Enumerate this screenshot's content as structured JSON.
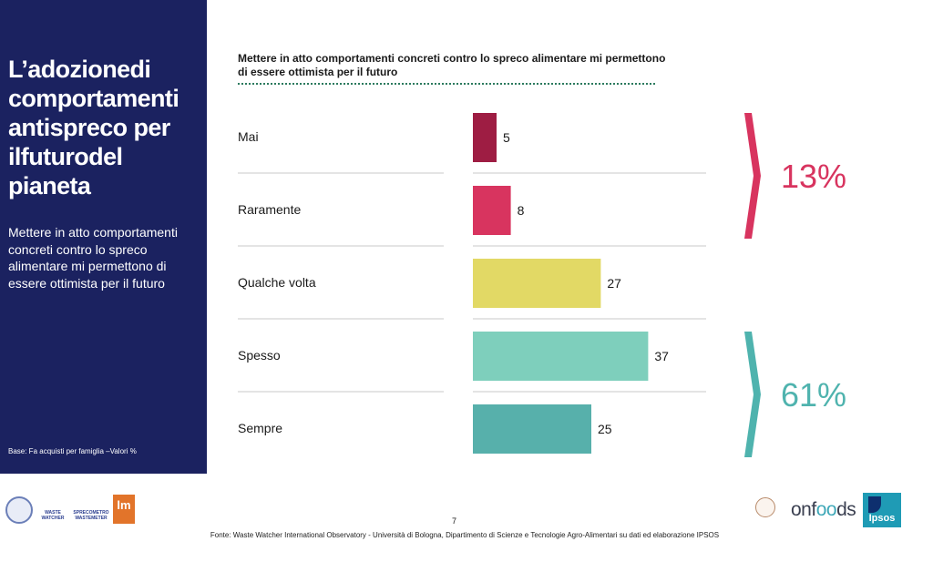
{
  "left_panel": {
    "title": "L’adozionedi comportamenti antispreco per ilfuturodel pianeta",
    "subtitle": "Mettere in atto comportamenti concreti contro lo spreco alimentare mi permettono di essere ottimista per il futuro",
    "base": "Base: Fa acquisti per famiglia –Valori %"
  },
  "colors": {
    "panel": "#1b2260",
    "mai": "#9e1d43",
    "raramente": "#d8345f",
    "qualche_volta": "#e2d965",
    "spesso": "#7ecfbc",
    "sempre": "#57b0ab",
    "group_negative": "#d8345f",
    "group_positive": "#4fb3ae"
  },
  "chart_data": {
    "type": "bar",
    "orientation": "horizontal",
    "title": "Mettere in atto comportamenti concreti contro lo spreco alimentare mi permettono di essere ottimista per il futuro",
    "categories": [
      "Mai",
      "Raramente",
      "Qualche volta",
      "Spesso",
      "Sempre"
    ],
    "values": [
      5,
      8,
      27,
      37,
      25
    ],
    "data_labels": [
      "5",
      "8",
      "27",
      "37",
      "25"
    ],
    "groups": [
      {
        "label": "13%",
        "categories": [
          "Mai",
          "Raramente"
        ]
      },
      {
        "label": "61%",
        "categories": [
          "Spesso",
          "Sempre"
        ]
      }
    ],
    "grid": false,
    "legend": "none"
  },
  "footer": {
    "page_number": "7",
    "source": "Fonte: Waste Watcher International Observatory - Università di Bologna, Dipartimento di Scienze e Tecnologie Agro-Alimentari su dati ed elaborazione IPSOS"
  },
  "logos": {
    "waste_watcher": "WASTE WATCHER",
    "sprecometro": "SPRECOMETRO WASTEMETER",
    "lm": "lm",
    "onfoods_prefix": "onf",
    "onfoods_o": "oo",
    "onfoods_suffix": "ds",
    "ipsos": "Ipsos"
  }
}
